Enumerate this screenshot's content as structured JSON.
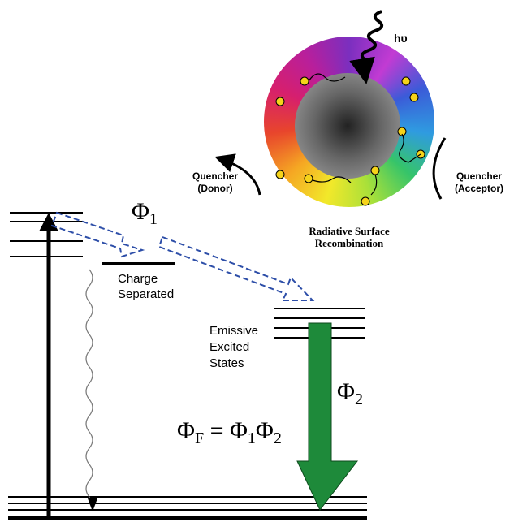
{
  "photon": "hυ",
  "quencher_donor": [
    "Quencher",
    "(Donor)"
  ],
  "quencher_acceptor": [
    "Quencher",
    "(Acceptor)"
  ],
  "ring_caption": [
    "Radiative Surface",
    "Recombination"
  ],
  "phi1": {
    "symbol": "Φ",
    "subscript": "1"
  },
  "charge_separated": [
    "Charge",
    "Separated"
  ],
  "emissive": [
    "Emissive",
    "Excited",
    "States"
  ],
  "phi2": {
    "symbol": "Φ",
    "subscript": "2"
  },
  "equation": {
    "lhs": "Φ",
    "lhs_sub": "F",
    "eq": " = ",
    "a": "Φ",
    "a_sub": "1",
    "b": "Φ",
    "b_sub": "2"
  }
}
